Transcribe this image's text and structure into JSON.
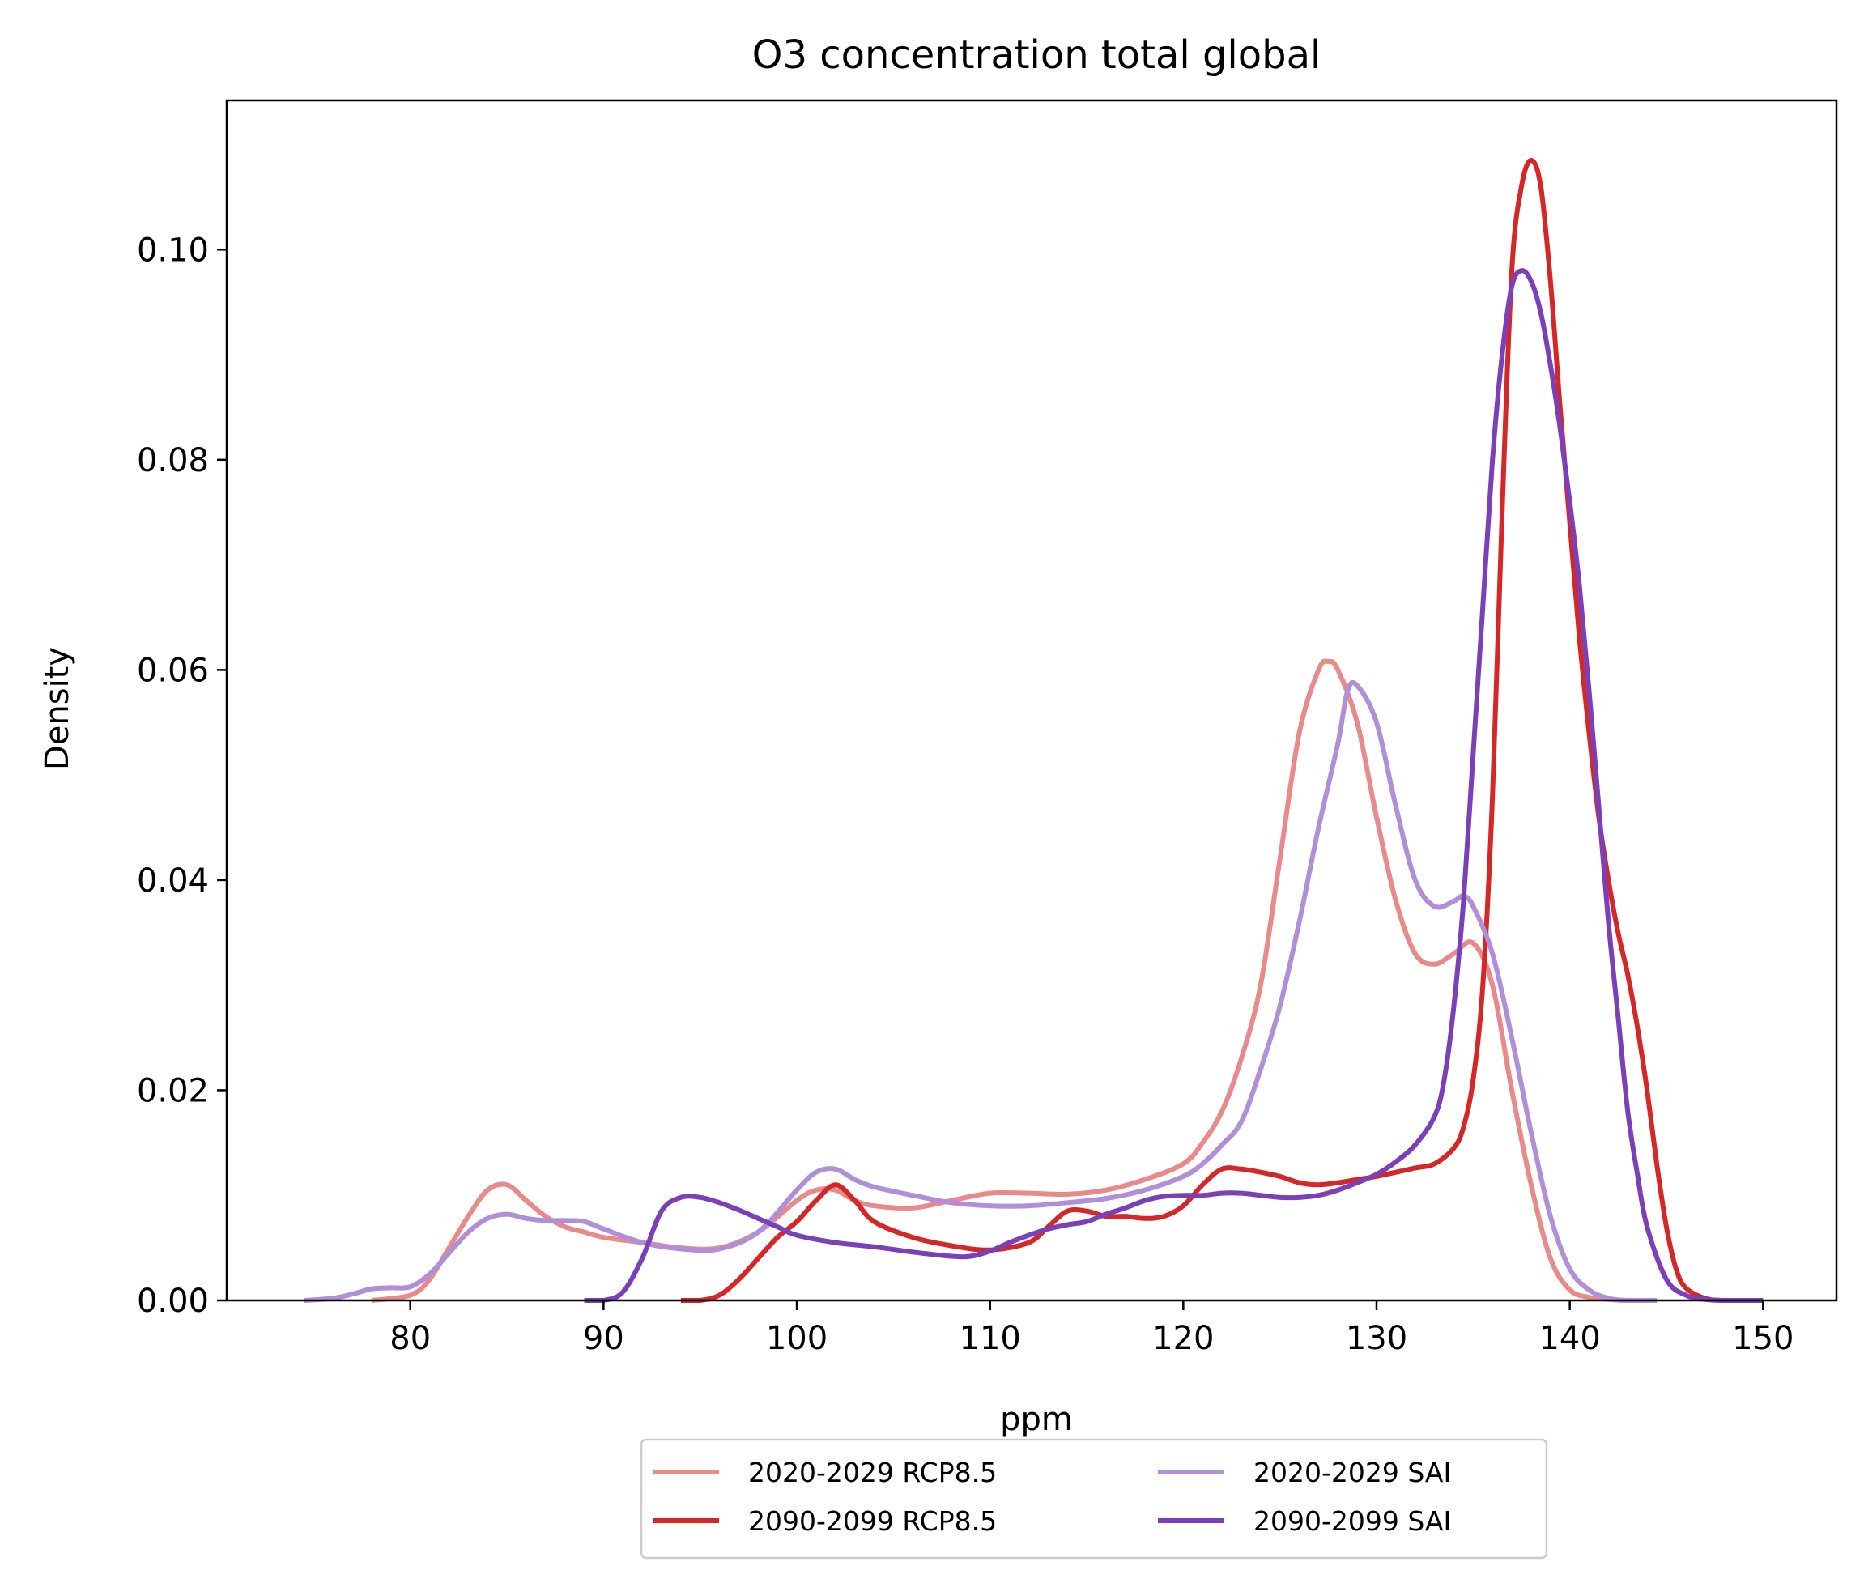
{
  "chart_data": {
    "type": "line",
    "title": "O3 concentration total global",
    "xlabel": "ppm",
    "ylabel": "Density",
    "xlim": [
      70.5,
      153.8
    ],
    "ylim": [
      0,
      0.1142
    ],
    "xticks": [
      80,
      90,
      100,
      110,
      120,
      130,
      140,
      150
    ],
    "xtick_labels": [
      "80",
      "90",
      "100",
      "110",
      "120",
      "130",
      "140",
      "150"
    ],
    "yticks": [
      0.0,
      0.02,
      0.04,
      0.06,
      0.08,
      0.1
    ],
    "ytick_labels": [
      "0.00",
      "0.02",
      "0.04",
      "0.06",
      "0.08",
      "0.10"
    ],
    "grid": false,
    "legend_position": "bottom-center-outside",
    "legend_columns": 2,
    "series": [
      {
        "name": "2020-2029 RCP8.5",
        "color": "#e88a8a",
        "x": [
          78,
          80,
          81,
          82,
          83,
          84,
          85,
          86,
          87,
          88,
          89,
          90,
          92,
          94,
          96,
          98,
          100,
          101,
          102,
          103,
          104,
          106,
          108,
          110,
          112,
          114,
          116,
          118,
          120,
          121,
          122,
          123,
          124,
          125,
          126,
          127,
          127.5,
          128,
          129,
          130,
          131,
          132,
          133,
          134,
          135,
          136,
          137,
          138,
          139,
          140,
          141,
          142,
          143,
          144.5
        ],
        "y": [
          0.0,
          0.0005,
          0.002,
          0.005,
          0.008,
          0.0105,
          0.011,
          0.0095,
          0.008,
          0.007,
          0.0065,
          0.006,
          0.0055,
          0.005,
          0.005,
          0.0065,
          0.0095,
          0.0105,
          0.0105,
          0.0095,
          0.009,
          0.0088,
          0.0095,
          0.0102,
          0.0102,
          0.0101,
          0.0105,
          0.0115,
          0.013,
          0.015,
          0.018,
          0.023,
          0.03,
          0.042,
          0.054,
          0.06,
          0.0608,
          0.06,
          0.055,
          0.046,
          0.038,
          0.033,
          0.032,
          0.033,
          0.034,
          0.03,
          0.02,
          0.011,
          0.004,
          0.001,
          0.0003,
          0.0001,
          0.0,
          0.0
        ]
      },
      {
        "name": "2090-2099 RCP8.5",
        "color": "#d62728",
        "x": [
          94,
          95,
          96,
          97,
          98,
          99,
          100,
          101,
          102,
          103,
          104,
          106,
          108,
          110,
          112,
          113,
          114,
          115,
          116,
          117,
          118,
          119,
          120,
          121,
          122,
          123,
          124,
          125,
          126,
          127,
          128,
          129,
          130,
          131,
          132,
          133,
          134,
          134.5,
          135,
          135.5,
          136,
          136.5,
          137,
          137.5,
          138,
          138.5,
          139,
          139.5,
          140,
          140.5,
          141,
          141.5,
          142,
          142.5,
          143,
          143.5,
          144,
          144.5,
          145,
          145.5,
          146,
          147,
          148,
          150
        ],
        "y": [
          0.0,
          0.0,
          0.0005,
          0.002,
          0.004,
          0.006,
          0.0075,
          0.0095,
          0.011,
          0.0095,
          0.0075,
          0.006,
          0.0052,
          0.0048,
          0.0055,
          0.007,
          0.0085,
          0.0085,
          0.008,
          0.008,
          0.0078,
          0.008,
          0.009,
          0.011,
          0.0125,
          0.0125,
          0.0122,
          0.0118,
          0.0112,
          0.011,
          0.0112,
          0.0115,
          0.0118,
          0.0122,
          0.0126,
          0.013,
          0.0145,
          0.0165,
          0.021,
          0.03,
          0.048,
          0.075,
          0.098,
          0.106,
          0.1085,
          0.106,
          0.097,
          0.085,
          0.074,
          0.063,
          0.054,
          0.046,
          0.04,
          0.035,
          0.031,
          0.026,
          0.02,
          0.013,
          0.007,
          0.003,
          0.0012,
          0.0002,
          0.0,
          0.0
        ]
      },
      {
        "name": "2020-2029 SAI",
        "color": "#b08ed8",
        "x": [
          74.5,
          76,
          77,
          78,
          79,
          80,
          81,
          82,
          83,
          84,
          85,
          86,
          87,
          88,
          89,
          90,
          92,
          94,
          96,
          98,
          100,
          101,
          102,
          103,
          104,
          106,
          108,
          110,
          112,
          114,
          116,
          118,
          120,
          121,
          122,
          123,
          124,
          125,
          126,
          127,
          128,
          128.5,
          129,
          130,
          131,
          132,
          133,
          134,
          134.5,
          135,
          136,
          137,
          138,
          139,
          140,
          141,
          142,
          143,
          144.5
        ],
        "y": [
          0.0,
          0.0002,
          0.0006,
          0.0011,
          0.0012,
          0.0013,
          0.0025,
          0.0045,
          0.0065,
          0.0078,
          0.0082,
          0.0078,
          0.0076,
          0.0076,
          0.0075,
          0.0068,
          0.0055,
          0.0049,
          0.0049,
          0.0065,
          0.0105,
          0.0122,
          0.0125,
          0.0115,
          0.0108,
          0.01,
          0.0093,
          0.009,
          0.009,
          0.0093,
          0.0097,
          0.0105,
          0.0118,
          0.013,
          0.0148,
          0.017,
          0.022,
          0.028,
          0.036,
          0.045,
          0.053,
          0.058,
          0.0585,
          0.055,
          0.047,
          0.04,
          0.0375,
          0.038,
          0.0385,
          0.0375,
          0.033,
          0.025,
          0.016,
          0.008,
          0.003,
          0.001,
          0.0002,
          0.0,
          0.0
        ]
      },
      {
        "name": "2090-2099 SAI",
        "color": "#7b3fb8",
        "x": [
          89,
          90,
          91,
          92,
          93,
          94,
          95,
          96,
          97,
          98,
          99,
          100,
          102,
          104,
          106,
          108,
          109,
          110,
          111,
          112,
          113,
          114,
          115,
          116,
          117,
          118,
          119,
          120,
          121,
          122,
          123,
          124,
          125,
          126,
          127,
          128,
          129,
          130,
          131,
          132,
          133,
          133.5,
          134,
          134.5,
          135,
          135.5,
          136,
          136.5,
          137,
          137.5,
          138,
          138.5,
          139,
          139.5,
          140,
          140.5,
          141,
          141.5,
          142,
          142.5,
          143,
          143.5,
          144,
          145,
          146,
          147,
          148,
          150
        ],
        "y": [
          0.0,
          0.0,
          0.0008,
          0.004,
          0.0085,
          0.0098,
          0.0098,
          0.0093,
          0.0086,
          0.0078,
          0.007,
          0.0062,
          0.0055,
          0.0051,
          0.0046,
          0.0042,
          0.0042,
          0.0047,
          0.0055,
          0.0062,
          0.0068,
          0.0072,
          0.0075,
          0.0082,
          0.0088,
          0.0095,
          0.0099,
          0.01,
          0.01,
          0.0102,
          0.0102,
          0.01,
          0.0098,
          0.0098,
          0.01,
          0.0105,
          0.0112,
          0.012,
          0.0132,
          0.0148,
          0.0175,
          0.021,
          0.028,
          0.038,
          0.052,
          0.066,
          0.08,
          0.09,
          0.0965,
          0.098,
          0.097,
          0.094,
          0.089,
          0.083,
          0.076,
          0.068,
          0.058,
          0.047,
          0.036,
          0.027,
          0.018,
          0.012,
          0.007,
          0.002,
          0.0005,
          0.0001,
          0.0,
          0.0
        ]
      }
    ]
  }
}
